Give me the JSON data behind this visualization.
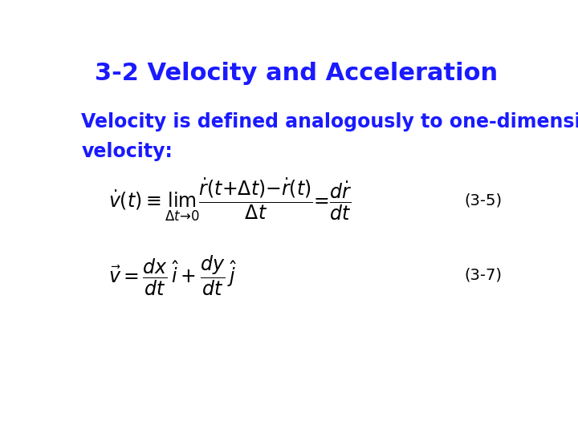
{
  "title": "3-2 Velocity and Acceleration",
  "title_color": "#1a1aff",
  "title_fontsize": 22,
  "body_text_line1": "Velocity is defined analogously to one-dimensional",
  "body_text_line2": "velocity:",
  "body_color": "#1a1aff",
  "body_fontsize": 17,
  "eq1_label": "(3-5)",
  "eq2_label": "(3-7)",
  "eq_color": "black",
  "eq_label_color": "black",
  "eq_fontsize": 17,
  "eq_label_fontsize": 14,
  "bg_color": "white"
}
